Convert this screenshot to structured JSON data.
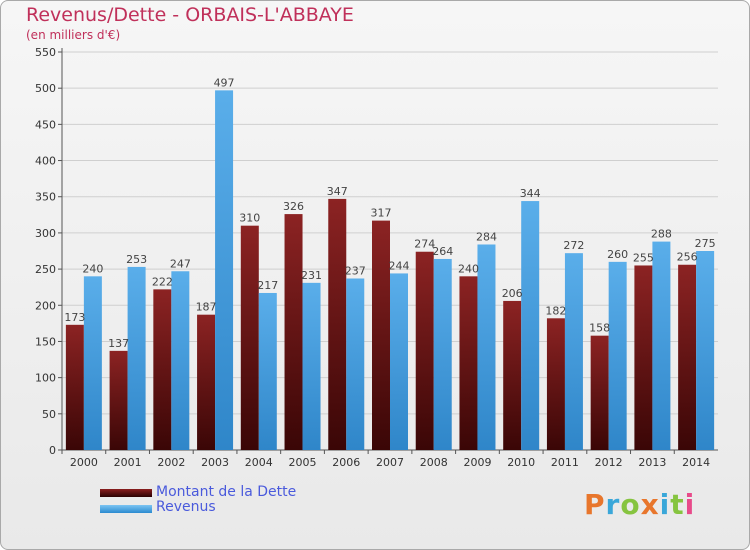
{
  "chart_data": {
    "type": "bar",
    "title": "Revenus/Dette - ORBAIS-L'ABBAYE",
    "subtitle": "(en milliers d'€)",
    "categories": [
      "2000",
      "2001",
      "2002",
      "2003",
      "2004",
      "2005",
      "2006",
      "2007",
      "2008",
      "2009",
      "2010",
      "2011",
      "2012",
      "2013",
      "2014"
    ],
    "series": [
      {
        "name": "Montant de la Dette",
        "values": [
          173,
          137,
          222,
          187,
          310,
          326,
          347,
          317,
          274,
          240,
          206,
          182,
          158,
          255,
          256
        ],
        "color": "#7a1a1a"
      },
      {
        "name": "Revenus",
        "values": [
          240,
          253,
          247,
          497,
          217,
          231,
          237,
          244,
          264,
          284,
          344,
          272,
          260,
          288,
          275
        ],
        "color": "#4aa3e6"
      }
    ],
    "ylim": [
      0,
      550
    ],
    "yticks": [
      0,
      50,
      100,
      150,
      200,
      250,
      300,
      350,
      400,
      450,
      500,
      550
    ],
    "grid": true,
    "data_labels": true,
    "legend_position": "bottom-left"
  },
  "logo": {
    "text": "Proxiti",
    "letter_colors": [
      "#e8762c",
      "#3aa7d9",
      "#86c440",
      "#e8762c",
      "#3aa7d9",
      "#86c440",
      "#e84a8a"
    ]
  }
}
